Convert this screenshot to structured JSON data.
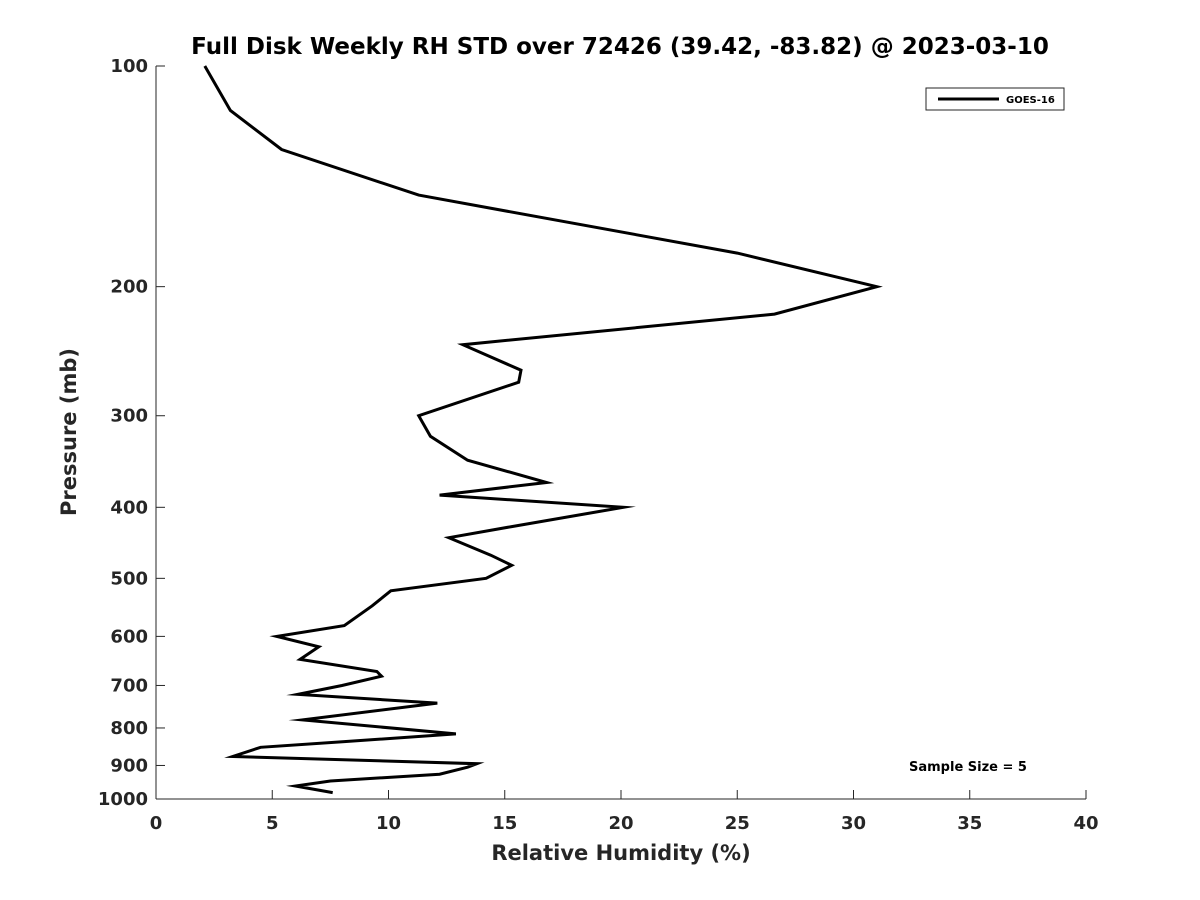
{
  "chart_data": {
    "type": "line",
    "title": "Full Disk Weekly RH STD over 72426 (39.42, -83.82) @ 2023-03-10",
    "xlabel": "Relative Humidity (%)",
    "ylabel": "Pressure (mb)",
    "xlim": [
      0,
      40
    ],
    "ylim": [
      100,
      1000
    ],
    "y_scale": "log",
    "y_reversed": true,
    "x_ticks": [
      0,
      5,
      10,
      15,
      20,
      25,
      30,
      35,
      40
    ],
    "y_ticks": [
      100,
      200,
      300,
      400,
      500,
      600,
      700,
      800,
      900,
      1000
    ],
    "grid": false,
    "legend_position": "top-right",
    "annotation": "Sample Size = 5",
    "series": [
      {
        "name": "GOES-16",
        "color": "#000000",
        "points": [
          [
            2.1,
            100
          ],
          [
            3.2,
            115
          ],
          [
            5.4,
            130
          ],
          [
            11.3,
            150
          ],
          [
            25.0,
            180
          ],
          [
            31.0,
            200
          ],
          [
            26.6,
            218
          ],
          [
            13.2,
            240
          ],
          [
            15.7,
            260
          ],
          [
            15.6,
            270
          ],
          [
            11.3,
            300
          ],
          [
            11.8,
            320
          ],
          [
            13.4,
            345
          ],
          [
            16.8,
            370
          ],
          [
            12.2,
            385
          ],
          [
            20.1,
            400
          ],
          [
            15.3,
            425
          ],
          [
            12.6,
            440
          ],
          [
            14.4,
            465
          ],
          [
            15.3,
            480
          ],
          [
            14.2,
            500
          ],
          [
            10.1,
            520
          ],
          [
            9.3,
            545
          ],
          [
            8.1,
            580
          ],
          [
            5.2,
            600
          ],
          [
            7.0,
            620
          ],
          [
            6.2,
            645
          ],
          [
            9.5,
            670
          ],
          [
            9.7,
            680
          ],
          [
            8.0,
            700
          ],
          [
            6.1,
            720
          ],
          [
            12.1,
            740
          ],
          [
            6.3,
            780
          ],
          [
            12.9,
            815
          ],
          [
            8.1,
            835
          ],
          [
            4.5,
            850
          ],
          [
            3.3,
            875
          ],
          [
            13.8,
            895
          ],
          [
            13.4,
            905
          ],
          [
            12.2,
            925
          ],
          [
            7.5,
            945
          ],
          [
            6.0,
            960
          ],
          [
            7.6,
            980
          ]
        ]
      }
    ]
  }
}
